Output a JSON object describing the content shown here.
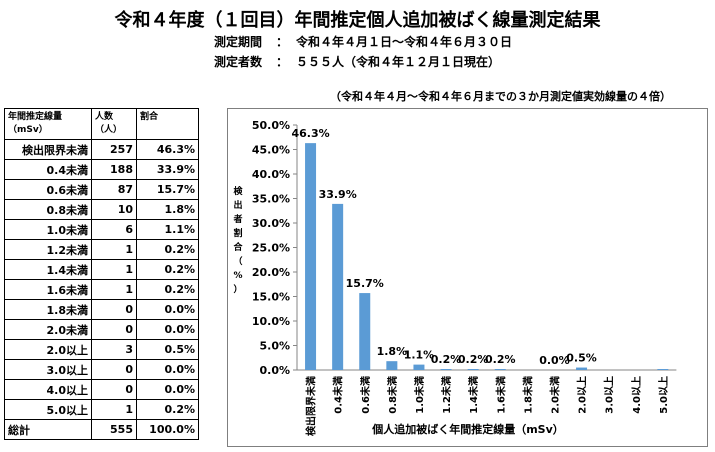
{
  "header": {
    "title": "令和４年度（１回目）年間推定個人追加被ばく線量測定結果",
    "period_label": "測定期間",
    "period_sep": "：",
    "period_value": "令和４年４月１日～令和４年６月３０日",
    "count_label": "測定者数",
    "count_sep": "：",
    "count_value": "５５５人（令和４年１２月１日現在）"
  },
  "chart_note": "（令和４年４月～令和４年６月までの３か月測定値実効線量の４倍）",
  "table": {
    "headers": [
      "年間推定線量 （mSv）",
      "人数（人）",
      "割合"
    ],
    "rows": [
      [
        "検出限界未満",
        "257",
        "46.3%"
      ],
      [
        "0.4未満",
        "188",
        "33.9%"
      ],
      [
        "0.6未満",
        "87",
        "15.7%"
      ],
      [
        "0.8未満",
        "10",
        "1.8%"
      ],
      [
        "1.0未満",
        "6",
        "1.1%"
      ],
      [
        "1.2未満",
        "1",
        "0.2%"
      ],
      [
        "1.4未満",
        "1",
        "0.2%"
      ],
      [
        "1.6未満",
        "1",
        "0.2%"
      ],
      [
        "1.8未満",
        "0",
        "0.0%"
      ],
      [
        "2.0未満",
        "0",
        "0.0%"
      ],
      [
        "2.0以上",
        "3",
        "0.5%"
      ],
      [
        "3.0以上",
        "0",
        "0.0%"
      ],
      [
        "4.0以上",
        "0",
        "0.0%"
      ],
      [
        "5.0以上",
        "1",
        "0.2%"
      ]
    ],
    "total": [
      "総計",
      "555",
      "100.0%"
    ]
  },
  "chart_data": {
    "type": "bar",
    "categories": [
      "検出限界未満",
      "0.4未満",
      "0.6未満",
      "0.8未満",
      "1.0未満",
      "1.2未満",
      "1.4未満",
      "1.6未満",
      "1.8未満",
      "2.0未満",
      "2.0以上",
      "3.0以上",
      "4.0以上",
      "5.0以上"
    ],
    "values": [
      46.3,
      33.9,
      15.7,
      1.8,
      1.1,
      0.2,
      0.2,
      0.2,
      0.0,
      0.0,
      0.5,
      0.0,
      0.0,
      0.2
    ],
    "data_labels": [
      "46.3%",
      "33.9%",
      "15.7%",
      "1.8%",
      "1.1%",
      "0.2%",
      "0.2%",
      "0.2%",
      "",
      "0.0%",
      "0.5%",
      "",
      "",
      ""
    ],
    "xlabel": "個人追加被ばく年間推定線量（mSv）",
    "ylabel": "検出者割合（%）",
    "ylim": [
      0,
      50
    ],
    "yticks": [
      "0.0%",
      "5.0%",
      "10.0%",
      "15.0%",
      "20.0%",
      "25.0%",
      "30.0%",
      "35.0%",
      "40.0%",
      "45.0%",
      "50.0%"
    ],
    "grid": false,
    "legend": "none",
    "bar_color": "#5b9bd5"
  }
}
